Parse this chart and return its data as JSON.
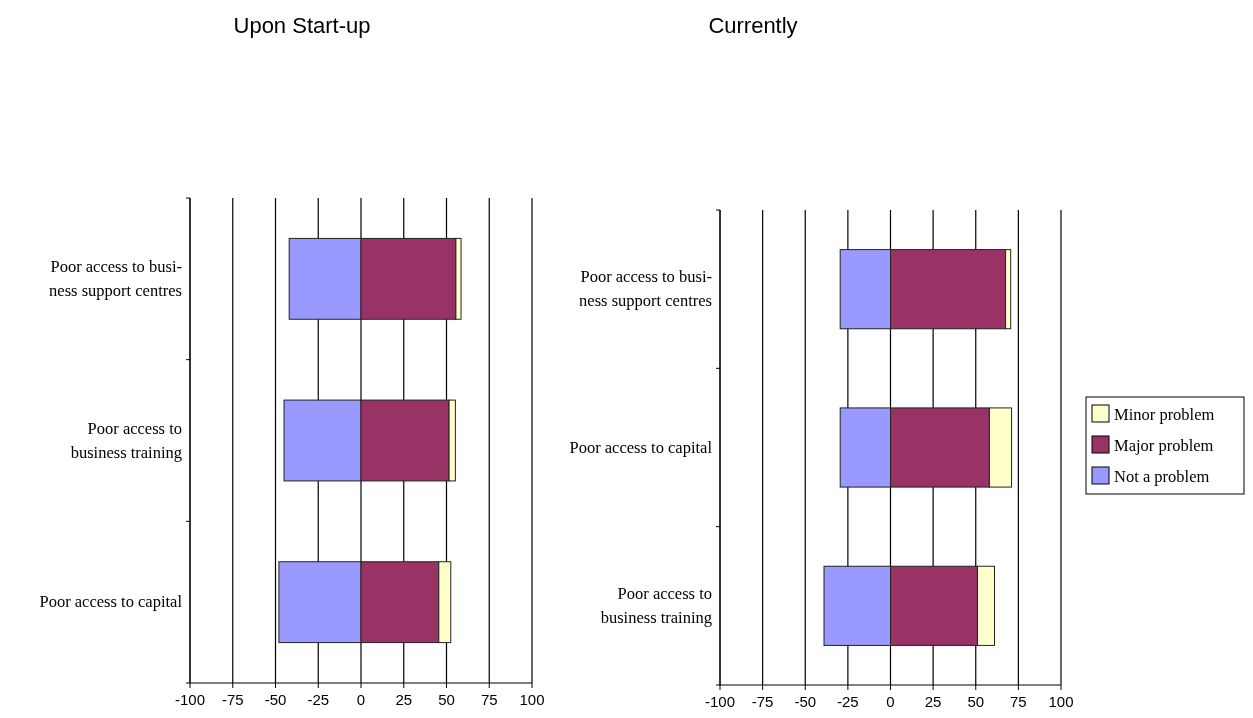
{
  "chart_data": [
    {
      "type": "bar",
      "title": "Upon Start-up",
      "orientation": "horizontal",
      "stacked": true,
      "categories": [
        "Poor access to busi-\nness support centres",
        "Poor access to\nbusiness training",
        "Poor access to capital"
      ],
      "series": [
        {
          "color": "#9999ff",
          "values": [
            -42,
            -45,
            -48
          ]
        },
        {
          "color": "#993366",
          "values": [
            55.5,
            51.5,
            45.5
          ]
        },
        {
          "color": "#ffffcc",
          "values": [
            3,
            3.7,
            7
          ]
        }
      ],
      "xlim": [
        -100,
        100
      ],
      "xticks": [
        -100,
        -75,
        -50,
        -25,
        0,
        25,
        50,
        75,
        100
      ],
      "grid": "x",
      "legend": false
    },
    {
      "type": "bar",
      "title": "Currently",
      "orientation": "horizontal",
      "stacked": true,
      "categories": [
        "Poor access to busi-\nness support centres",
        "Poor access to capital",
        "Poor access to\nbusiness training"
      ],
      "series": [
        {
          "name": "Not a problem",
          "color": "#9999ff",
          "values": [
            -29.5,
            -29.5,
            -39
          ]
        },
        {
          "name": "Major problem",
          "color": "#993366",
          "values": [
            67.5,
            58,
            51
          ]
        },
        {
          "name": "Minor problem",
          "color": "#ffffcc",
          "values": [
            3,
            13,
            10
          ]
        }
      ],
      "xlim": [
        -100,
        100
      ],
      "xticks": [
        -100,
        -75,
        -50,
        -25,
        0,
        25,
        50,
        75,
        100
      ],
      "grid": "x",
      "legend": "right"
    }
  ]
}
